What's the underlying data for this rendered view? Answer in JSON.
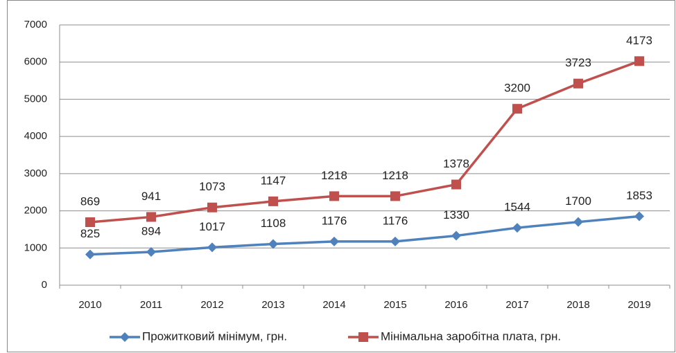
{
  "chart_data": {
    "type": "line",
    "stacked": true,
    "categories": [
      "2010",
      "2011",
      "2012",
      "2013",
      "2014",
      "2015",
      "2016",
      "2017",
      "2018",
      "2019"
    ],
    "series": [
      {
        "name": "Прожитковий мінімум, грн.",
        "color": "#4f81bd",
        "marker": "diamond",
        "values": [
          825,
          894,
          1017,
          1108,
          1176,
          1176,
          1330,
          1544,
          1700,
          1853
        ]
      },
      {
        "name": "Мінімальна заробітна плата, грн.",
        "color": "#c0504d",
        "marker": "square",
        "values": [
          869,
          941,
          1073,
          1147,
          1218,
          1218,
          1378,
          3200,
          3723,
          4173
        ]
      }
    ],
    "ylim": [
      0,
      7000
    ],
    "yticks": [
      0,
      1000,
      2000,
      3000,
      4000,
      5000,
      6000,
      7000
    ],
    "grid": true,
    "legend": "bottom"
  }
}
